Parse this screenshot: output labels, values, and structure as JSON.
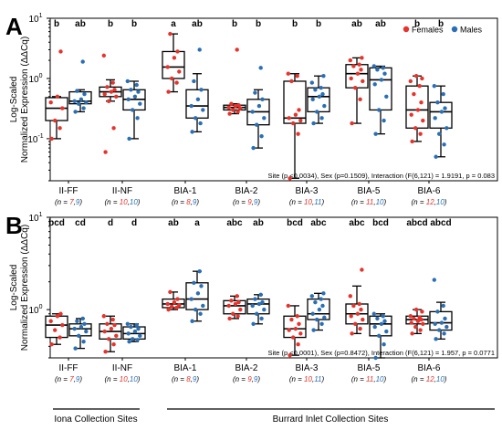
{
  "colors": {
    "female": "#e8322b",
    "male": "#2a6fb5",
    "box": "#000000"
  },
  "legend": {
    "female_label": "Females",
    "male_label": "Males"
  },
  "group_labels": {
    "iona": "Iona Collection Sites",
    "burrard": "Burrard Inlet Collection Sites"
  },
  "chart_data": [
    {
      "panel": "A",
      "type": "box",
      "ylabel": "Log-Scaled\nNormalized Expression (ΔΔCq)",
      "yscale": "log",
      "ylim": [
        0.02,
        10
      ],
      "yticks": [
        "10^-1",
        "10^0",
        "10^1"
      ],
      "legend_position": "top-right",
      "stats": "Site (p <0.0034), Sex (p=0.1509), Interaction (F(6,121) = 1.9191, p = 0.083",
      "categories": [
        {
          "site": "II-FF",
          "n_f": "7",
          "n_m": "9",
          "female": {
            "box": [
              0.1,
              0.2,
              0.32,
              0.48,
              0.5
            ],
            "letter": "b",
            "points": [
              0.1,
              0.15,
              0.2,
              0.32,
              0.4,
              0.5,
              2.8
            ]
          },
          "male": {
            "box": [
              0.28,
              0.38,
              0.42,
              0.6,
              0.65
            ],
            "letter": "ab",
            "points": [
              0.28,
              0.32,
              0.38,
              0.4,
              0.42,
              0.45,
              0.55,
              0.62,
              1.9
            ]
          }
        },
        {
          "site": "II-NF",
          "n_f": "10",
          "n_m": "10",
          "female": {
            "box": [
              0.42,
              0.5,
              0.6,
              0.72,
              0.95
            ],
            "letter": "b",
            "points": [
              0.06,
              0.15,
              0.42,
              0.5,
              0.55,
              0.6,
              0.65,
              0.72,
              0.85,
              2.4
            ]
          },
          "male": {
            "box": [
              0.1,
              0.3,
              0.45,
              0.65,
              0.9
            ],
            "letter": "b",
            "points": [
              0.1,
              0.22,
              0.3,
              0.38,
              0.45,
              0.5,
              0.6,
              0.65,
              0.78,
              0.9
            ]
          }
        },
        {
          "site": "BIA-1",
          "n_f": "8",
          "n_m": "9",
          "female": {
            "box": [
              0.6,
              1.0,
              1.55,
              2.8,
              5.5
            ],
            "letter": "a",
            "points": [
              0.6,
              0.85,
              1.0,
              1.3,
              1.55,
              2.2,
              2.8,
              5.5
            ]
          },
          "male": {
            "box": [
              0.13,
              0.22,
              0.35,
              0.65,
              1.2
            ],
            "letter": "ab",
            "points": [
              0.13,
              0.18,
              0.22,
              0.3,
              0.35,
              0.45,
              0.65,
              0.9,
              3.0
            ]
          }
        },
        {
          "site": "BIA-2",
          "n_f": "9",
          "n_m": "9",
          "female": {
            "box": [
              0.26,
              0.3,
              0.33,
              0.36,
              0.38
            ],
            "letter": "b",
            "points": [
              0.26,
              0.28,
              0.3,
              0.32,
              0.33,
              0.35,
              0.36,
              0.38,
              3.0
            ]
          },
          "male": {
            "box": [
              0.07,
              0.17,
              0.28,
              0.45,
              0.65
            ],
            "letter": "b",
            "points": [
              0.07,
              0.11,
              0.17,
              0.22,
              0.28,
              0.35,
              0.45,
              0.58,
              1.5
            ]
          }
        },
        {
          "site": "BIA-3",
          "n_f": "10",
          "n_m": "11",
          "female": {
            "box": [
              0.022,
              0.18,
              0.22,
              0.9,
              1.2
            ],
            "letter": "b",
            "points": [
              0.022,
              0.12,
              0.18,
              0.2,
              0.22,
              0.25,
              0.3,
              0.9,
              1.1,
              1.2
            ]
          },
          "male": {
            "box": [
              0.18,
              0.28,
              0.5,
              0.7,
              1.1
            ],
            "letter": "b",
            "points": [
              0.18,
              0.22,
              0.28,
              0.35,
              0.45,
              0.5,
              0.55,
              0.65,
              0.7,
              0.85,
              1.1
            ]
          }
        },
        {
          "site": "BIA-5",
          "n_f": "11",
          "n_m": "10",
          "female": {
            "box": [
              0.18,
              0.7,
              1.2,
              1.7,
              2.2
            ],
            "letter": "ab",
            "points": [
              0.18,
              0.45,
              0.7,
              0.9,
              1.0,
              1.2,
              1.4,
              1.6,
              1.7,
              2.0,
              2.2
            ]
          },
          "male": {
            "box": [
              0.12,
              0.3,
              0.95,
              1.5,
              1.6
            ],
            "letter": "ab",
            "points": [
              0.12,
              0.2,
              0.3,
              0.5,
              0.8,
              0.95,
              1.2,
              1.4,
              1.5,
              1.6
            ]
          }
        },
        {
          "site": "BIA-6",
          "n_f": "12",
          "n_m": "10",
          "female": {
            "box": [
              0.09,
              0.15,
              0.3,
              0.75,
              1.1
            ],
            "letter": "b",
            "points": [
              0.09,
              0.12,
              0.15,
              0.2,
              0.25,
              0.3,
              0.4,
              0.55,
              0.75,
              0.9,
              1.0,
              1.1
            ]
          },
          "male": {
            "box": [
              0.05,
              0.15,
              0.28,
              0.4,
              0.75
            ],
            "letter": "b",
            "points": [
              0.05,
              0.08,
              0.12,
              0.15,
              0.22,
              0.28,
              0.32,
              0.4,
              0.55,
              0.75
            ]
          }
        }
      ]
    },
    {
      "panel": "B",
      "type": "box",
      "ylabel": "Log-Scaled\nNormalized Expression (ΔΔCq)",
      "yscale": "log",
      "ylim": [
        0.3,
        10
      ],
      "yticks": [
        "10^0",
        "10^1"
      ],
      "stats": "Site (p <0.0001), Sex (p=0.8472), Interaction (F(6,121) = 1.957, p = 0.0771",
      "categories": [
        {
          "site": "II-FF",
          "n_f": "7",
          "n_m": "9",
          "female": {
            "box": [
              0.42,
              0.5,
              0.68,
              0.85,
              0.9
            ],
            "letter": "bcd",
            "points": [
              0.42,
              0.5,
              0.6,
              0.68,
              0.75,
              0.85,
              0.9
            ]
          },
          "male": {
            "box": [
              0.38,
              0.52,
              0.62,
              0.7,
              0.8
            ],
            "letter": "cd",
            "points": [
              0.38,
              0.45,
              0.52,
              0.58,
              0.62,
              0.65,
              0.7,
              0.75,
              0.8
            ]
          }
        },
        {
          "site": "II-NF",
          "n_f": "10",
          "n_m": "10",
          "female": {
            "box": [
              0.35,
              0.48,
              0.58,
              0.7,
              0.85
            ],
            "letter": "d",
            "points": [
              0.35,
              0.42,
              0.48,
              0.52,
              0.58,
              0.62,
              0.68,
              0.7,
              0.78,
              0.85
            ]
          },
          "male": {
            "box": [
              0.45,
              0.48,
              0.55,
              0.65,
              0.7
            ],
            "letter": "d",
            "points": [
              0.45,
              0.47,
              0.48,
              0.52,
              0.55,
              0.58,
              0.62,
              0.65,
              0.68,
              0.7
            ]
          }
        },
        {
          "site": "BIA-1",
          "n_f": "8",
          "n_m": "9",
          "female": {
            "box": [
              1.0,
              1.05,
              1.15,
              1.3,
              1.55
            ],
            "letter": "ab",
            "points": [
              1.0,
              1.05,
              1.08,
              1.12,
              1.15,
              1.2,
              1.3,
              1.55
            ]
          },
          "male": {
            "box": [
              0.75,
              1.0,
              1.3,
              1.95,
              2.6
            ],
            "letter": "a",
            "points": [
              0.75,
              0.9,
              1.0,
              1.1,
              1.3,
              1.5,
              1.8,
              1.95,
              2.6
            ]
          }
        },
        {
          "site": "BIA-2",
          "n_f": "9",
          "n_m": "9",
          "female": {
            "box": [
              0.8,
              0.9,
              1.1,
              1.25,
              1.4
            ],
            "letter": "abc",
            "points": [
              0.8,
              0.85,
              0.9,
              1.0,
              1.1,
              1.15,
              1.2,
              1.25,
              1.4
            ]
          },
          "male": {
            "box": [
              0.7,
              0.9,
              1.15,
              1.3,
              1.45
            ],
            "letter": "ab",
            "points": [
              0.7,
              0.8,
              0.9,
              1.0,
              1.1,
              1.15,
              1.2,
              1.3,
              1.45
            ]
          }
        },
        {
          "site": "BIA-3",
          "n_f": "10",
          "n_m": "11",
          "female": {
            "box": [
              0.32,
              0.5,
              0.62,
              0.85,
              1.1
            ],
            "letter": "bcd",
            "points": [
              0.32,
              0.42,
              0.5,
              0.55,
              0.6,
              0.62,
              0.7,
              0.78,
              0.85,
              1.1
            ]
          },
          "male": {
            "box": [
              0.6,
              0.78,
              0.9,
              1.3,
              1.5
            ],
            "letter": "abc",
            "points": [
              0.6,
              0.7,
              0.78,
              0.82,
              0.9,
              1.0,
              1.1,
              1.2,
              1.3,
              1.4,
              1.5
            ]
          }
        },
        {
          "site": "BIA-5",
          "n_f": "11",
          "n_m": "10",
          "female": {
            "box": [
              0.55,
              0.7,
              0.9,
              1.15,
              1.8
            ],
            "letter": "abc",
            "points": [
              0.55,
              0.62,
              0.7,
              0.78,
              0.85,
              0.9,
              1.0,
              1.1,
              1.15,
              1.4,
              2.7
            ]
          },
          "male": {
            "box": [
              0.3,
              0.52,
              0.7,
              0.85,
              0.9
            ],
            "letter": "bcd",
            "points": [
              0.3,
              0.42,
              0.52,
              0.58,
              0.65,
              0.7,
              0.75,
              0.8,
              0.85,
              0.9
            ]
          }
        },
        {
          "site": "BIA-6",
          "n_f": "12",
          "n_m": "10",
          "female": {
            "box": [
              0.55,
              0.7,
              0.78,
              0.85,
              1.0
            ],
            "letter": "abcd",
            "points": [
              0.55,
              0.6,
              0.65,
              0.7,
              0.72,
              0.75,
              0.78,
              0.8,
              0.82,
              0.85,
              0.95,
              1.0
            ]
          },
          "male": {
            "box": [
              0.48,
              0.6,
              0.72,
              0.95,
              1.2
            ],
            "letter": "abcd",
            "points": [
              0.48,
              0.55,
              0.6,
              0.65,
              0.7,
              0.72,
              0.8,
              0.95,
              1.1,
              2.1
            ]
          }
        }
      ]
    }
  ]
}
